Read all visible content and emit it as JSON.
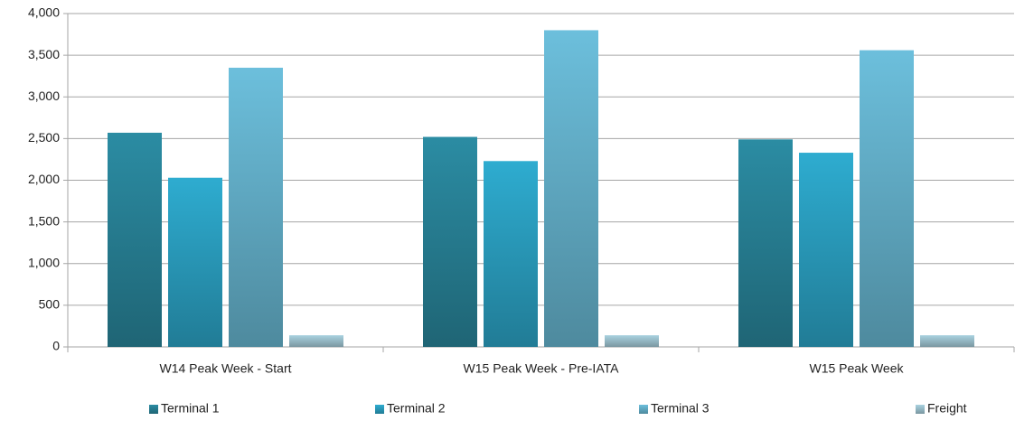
{
  "chart_data": {
    "type": "bar",
    "categories": [
      "W14 Peak Week - Start",
      "W15 Peak Week - Pre-IATA",
      "W15 Peak Week"
    ],
    "series": [
      {
        "name": "Terminal 1",
        "color": "#2b8ca3",
        "values": [
          2570,
          2520,
          2490
        ]
      },
      {
        "name": "Terminal 2",
        "color": "#2eacd0",
        "values": [
          2030,
          2230,
          2330
        ]
      },
      {
        "name": "Terminal 3",
        "color": "#6cbfdc",
        "values": [
          3350,
          3800,
          3560
        ]
      },
      {
        "name": "Freight",
        "color": "#a9d2e0",
        "values": [
          140,
          140,
          140
        ]
      }
    ],
    "ylim": [
      0,
      4000
    ],
    "yticks": [
      0,
      500,
      {
        "value": 1000,
        "label": "1,000"
      },
      {
        "value": 1500,
        "label": "1,500"
      },
      {
        "value": 2000,
        "label": "2,000"
      },
      {
        "value": 2500,
        "label": "2,500"
      },
      {
        "value": 3000,
        "label": "3,000"
      },
      {
        "value": 3500,
        "label": "3,500"
      },
      {
        "value": 4000,
        "label": "4,000"
      }
    ],
    "grid": true,
    "legend": "bottom"
  }
}
